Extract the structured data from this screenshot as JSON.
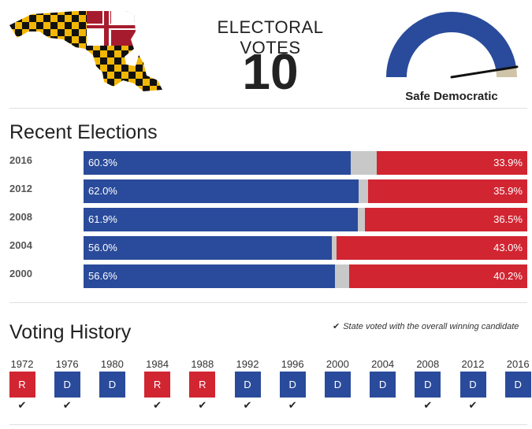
{
  "header": {
    "electoral_label": "ELECTORAL VOTES",
    "electoral_votes": "10",
    "rating": "Safe Democratic",
    "gauge_colors": {
      "dem": "#2a4b9b",
      "other": "#cfc3a8",
      "needle": "#111111"
    },
    "gauge_needle_fraction": 0.95
  },
  "recent": {
    "title": "Recent Elections",
    "colors": {
      "dem": "#2a4b9b",
      "rep": "#d22532",
      "other": "#c8c8c8"
    },
    "rows": [
      {
        "year": "2016",
        "dem": 60.3,
        "rep": 33.9,
        "dem_label": "60.3%",
        "rep_label": "33.9%"
      },
      {
        "year": "2012",
        "dem": 62.0,
        "rep": 35.9,
        "dem_label": "62.0%",
        "rep_label": "35.9%"
      },
      {
        "year": "2008",
        "dem": 61.9,
        "rep": 36.5,
        "dem_label": "61.9%",
        "rep_label": "36.5%"
      },
      {
        "year": "2004",
        "dem": 56.0,
        "rep": 43.0,
        "dem_label": "56.0%",
        "rep_label": "43.0%"
      },
      {
        "year": "2000",
        "dem": 56.6,
        "rep": 40.2,
        "dem_label": "56.6%",
        "rep_label": "40.2%"
      }
    ]
  },
  "history": {
    "title": "Voting History",
    "legend": "State voted with the overall winning candidate",
    "legend_icon": "check-icon",
    "items": [
      {
        "year": "1972",
        "party": "R",
        "winner": true
      },
      {
        "year": "1976",
        "party": "D",
        "winner": true
      },
      {
        "year": "1980",
        "party": "D",
        "winner": false
      },
      {
        "year": "1984",
        "party": "R",
        "winner": true
      },
      {
        "year": "1988",
        "party": "R",
        "winner": true
      },
      {
        "year": "1992",
        "party": "D",
        "winner": true
      },
      {
        "year": "1996",
        "party": "D",
        "winner": true
      },
      {
        "year": "2000",
        "party": "D",
        "winner": false
      },
      {
        "year": "2004",
        "party": "D",
        "winner": false
      },
      {
        "year": "2008",
        "party": "D",
        "winner": true
      },
      {
        "year": "2012",
        "party": "D",
        "winner": true
      },
      {
        "year": "2016",
        "party": "D",
        "winner": false
      }
    ]
  }
}
